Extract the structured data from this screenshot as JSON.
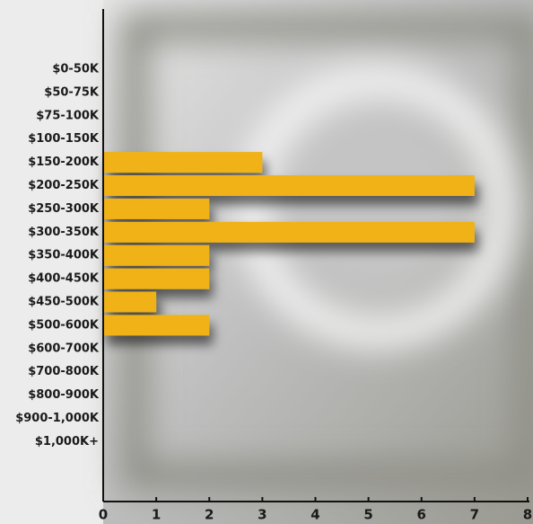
{
  "chart_data": {
    "type": "bar",
    "orientation": "horizontal",
    "categories": [
      "$0-50K",
      "$50-75K",
      "$75-100K",
      "$100-150K",
      "$150-200K",
      "$200-250K",
      "$250-300K",
      "$300-350K",
      "$350-400K",
      "$400-450K",
      "$450-500K",
      "$500-600K",
      "$600-700K",
      "$700-800K",
      "$800-900K",
      "$900-1,000K",
      "$1,000K+"
    ],
    "values": [
      0,
      0,
      0,
      0,
      3,
      7,
      2,
      7,
      2,
      2,
      1,
      2,
      0,
      0,
      0,
      0,
      0
    ],
    "color": "#f0b212",
    "xlim": [
      0,
      8
    ],
    "xticks": [
      0,
      1,
      2,
      3,
      4,
      5,
      6,
      7,
      8
    ]
  }
}
